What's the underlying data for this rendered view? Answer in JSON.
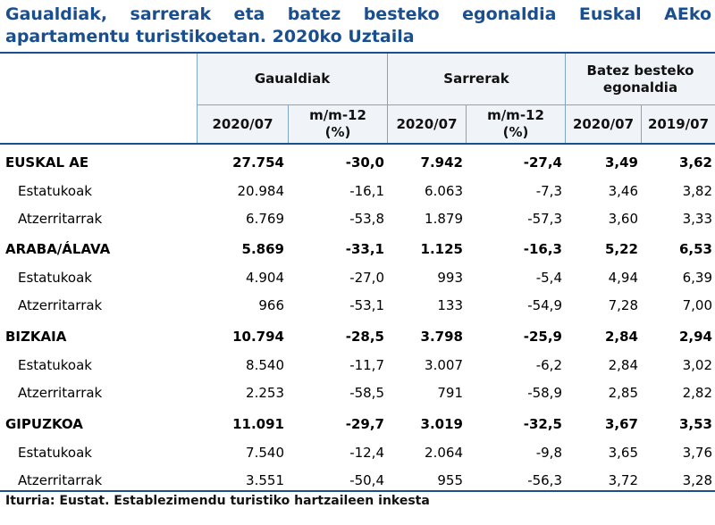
{
  "title": {
    "line1": "Gaualdiak, sarrerak eta batez besteko egonaldia Euskal AEko",
    "line2": "apartamentu turistikoetan. 2020ko Uztaila"
  },
  "headers": {
    "group1": "Gaualdiak",
    "group2": "Sarrerak",
    "group3": "Batez besteko egonaldia",
    "cols": [
      "2020/07",
      "m/m-12 (%)",
      "2020/07",
      "m/m-12 (%)",
      "2020/07",
      "2019/07"
    ]
  },
  "rows": [
    {
      "label": "EUSKAL AE",
      "bold": true,
      "values": [
        "27.754",
        "-30,0",
        "7.942",
        "-27,4",
        "3,49",
        "3,62"
      ]
    },
    {
      "label": "Estatukoak",
      "bold": false,
      "values": [
        "20.984",
        "-16,1",
        "6.063",
        "-7,3",
        "3,46",
        "3,82"
      ]
    },
    {
      "label": "Atzerritarrak",
      "bold": false,
      "values": [
        "6.769",
        "-53,8",
        "1.879",
        "-57,3",
        "3,60",
        "3,33"
      ]
    },
    {
      "label": "ARABA/ÁLAVA",
      "bold": true,
      "values": [
        "5.869",
        "-33,1",
        "1.125",
        "-16,3",
        "5,22",
        "6,53"
      ]
    },
    {
      "label": "Estatukoak",
      "bold": false,
      "values": [
        "4.904",
        "-27,0",
        "993",
        "-5,4",
        "4,94",
        "6,39"
      ]
    },
    {
      "label": "Atzerritarrak",
      "bold": false,
      "values": [
        "966",
        "-53,1",
        "133",
        "-54,9",
        "7,28",
        "7,00"
      ]
    },
    {
      "label": "BIZKAIA",
      "bold": true,
      "values": [
        "10.794",
        "-28,5",
        "3.798",
        "-25,9",
        "2,84",
        "2,94"
      ]
    },
    {
      "label": "Estatukoak",
      "bold": false,
      "values": [
        "8.540",
        "-11,7",
        "3.007",
        "-6,2",
        "2,84",
        "3,02"
      ]
    },
    {
      "label": "Atzerritarrak",
      "bold": false,
      "values": [
        "2.253",
        "-58,5",
        "791",
        "-58,9",
        "2,85",
        "2,82"
      ]
    },
    {
      "label": "GIPUZKOA",
      "bold": true,
      "values": [
        "11.091",
        "-29,7",
        "3.019",
        "-32,5",
        "3,67",
        "3,53"
      ]
    },
    {
      "label": "Estatukoak",
      "bold": false,
      "values": [
        "7.540",
        "-12,4",
        "2.064",
        "-9,8",
        "3,65",
        "3,76"
      ]
    },
    {
      "label": "Atzerritarrak",
      "bold": false,
      "values": [
        "3.551",
        "-50,4",
        "955",
        "-56,3",
        "3,72",
        "3,28"
      ]
    }
  ],
  "source": "Iturria: Eustat. Establezimendu turistiko hartzaileen inkesta"
}
